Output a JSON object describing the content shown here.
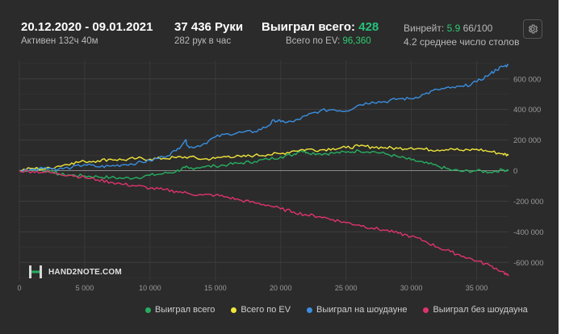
{
  "header": {
    "date_range": "20.12.2020 - 09.01.2021",
    "active_time": "Активен 132ч 40м",
    "hands": "37 436 Руки",
    "hands_per_hour": "282 рук в час",
    "won_total_label": "Выиграл всего:",
    "won_total_value": "428",
    "ev_total_label": "Всего по EV:",
    "ev_total_value": "96,360",
    "winrate_label": "Винрейт:",
    "winrate_value": "5.9",
    "winrate_extra": "66/100",
    "avg_tables": "4.2 среднее число столов",
    "settings_icon": "gear-icon"
  },
  "logo": {
    "text": "HAND2NOTE.COM",
    "icon": "h2n-logo-icon"
  },
  "colors": {
    "background": "#2b2b2b",
    "won_total": "#27ae60",
    "ev_total": "#f1e63a",
    "showdown": "#3a8fe0",
    "non_showdown": "#e0336b"
  },
  "chart_data": {
    "type": "line",
    "x_ticks": [
      "0",
      "5 000",
      "10 000",
      "15 000",
      "20 000",
      "25 000",
      "30 000",
      "35 000"
    ],
    "y_ticks": [
      "600 000",
      "400 000",
      "200 000",
      "0",
      "-200 000",
      "-400 000",
      "-600 000"
    ],
    "xlim": [
      0,
      37436
    ],
    "ylim": [
      -720000,
      720000
    ],
    "grid": true,
    "legend_position": "bottom",
    "series": [
      {
        "name": "Выиграл всего",
        "color": "#27ae60",
        "x": [
          0,
          1000,
          1500,
          2000,
          2500,
          3000,
          4000,
          5000,
          6000,
          7000,
          8000,
          9000,
          10000,
          11000,
          12000,
          12700,
          13000,
          14000,
          15000,
          16000,
          17000,
          18000,
          19000,
          20000,
          21000,
          21500,
          22000,
          23000,
          24000,
          25000,
          26000,
          27000,
          28000,
          29000,
          30000,
          31000,
          32000,
          33000,
          34000,
          35000,
          36000,
          37000,
          37436
        ],
        "y": [
          0,
          5000,
          15000,
          -5000,
          0,
          -25000,
          -30000,
          -35000,
          -40000,
          -45000,
          -50000,
          -45000,
          -30000,
          -20000,
          -5000,
          20000,
          15000,
          25000,
          30000,
          40000,
          50000,
          60000,
          75000,
          90000,
          105000,
          135000,
          120000,
          110000,
          115000,
          120000,
          130000,
          125000,
          110000,
          90000,
          70000,
          50000,
          30000,
          5000,
          -5000,
          0,
          -10000,
          5000,
          2000
        ]
      },
      {
        "name": "Всего по EV",
        "color": "#f1e63a",
        "x": [
          0,
          1000,
          2000,
          3000,
          4000,
          5000,
          6000,
          7000,
          8000,
          9000,
          10000,
          11000,
          12000,
          13000,
          14000,
          15000,
          16000,
          17000,
          18000,
          19000,
          20000,
          21000,
          22000,
          23000,
          24000,
          25000,
          26000,
          27000,
          28000,
          29000,
          30000,
          31000,
          32000,
          33000,
          34000,
          35000,
          36000,
          37000,
          37436
        ],
        "y": [
          0,
          15000,
          10000,
          30000,
          50000,
          60000,
          65000,
          75000,
          70000,
          80000,
          75000,
          80000,
          85000,
          90000,
          75000,
          80000,
          95000,
          90000,
          100000,
          105000,
          110000,
          130000,
          140000,
          135000,
          145000,
          150000,
          160000,
          155000,
          150000,
          145000,
          150000,
          140000,
          135000,
          145000,
          130000,
          140000,
          125000,
          110000,
          100000
        ]
      },
      {
        "name": "Выиграл на шоудауне",
        "color": "#3a8fe0",
        "x": [
          0,
          1000,
          2000,
          3000,
          4000,
          5000,
          6000,
          7000,
          8000,
          9000,
          10000,
          11000,
          12000,
          12700,
          13000,
          14000,
          15000,
          16000,
          17000,
          18000,
          19000,
          19500,
          20000,
          21000,
          22000,
          23000,
          24000,
          25000,
          26000,
          27000,
          28000,
          29000,
          30000,
          31000,
          32000,
          33000,
          34000,
          35000,
          36000,
          36500,
          37000,
          37436
        ],
        "y": [
          0,
          10000,
          20000,
          10000,
          20000,
          40000,
          25000,
          30000,
          40000,
          50000,
          65000,
          90000,
          130000,
          200000,
          150000,
          170000,
          220000,
          240000,
          250000,
          255000,
          290000,
          330000,
          320000,
          320000,
          360000,
          390000,
          400000,
          390000,
          430000,
          450000,
          450000,
          470000,
          470000,
          500000,
          530000,
          540000,
          550000,
          580000,
          630000,
          660000,
          680000,
          690000
        ]
      },
      {
        "name": "Выиграл без шоудауна",
        "color": "#e0336b",
        "x": [
          0,
          1000,
          2000,
          3000,
          4000,
          5000,
          6000,
          7000,
          8000,
          9000,
          10000,
          11000,
          12000,
          13000,
          14000,
          15000,
          16000,
          17000,
          18000,
          19000,
          20000,
          21000,
          22000,
          23000,
          24000,
          25000,
          26000,
          27000,
          28000,
          29000,
          30000,
          31000,
          32000,
          33000,
          34000,
          35000,
          36000,
          37000,
          37436
        ],
        "y": [
          0,
          -5000,
          -10000,
          -20000,
          -30000,
          -45000,
          -60000,
          -75000,
          -90000,
          -100000,
          -115000,
          -125000,
          -135000,
          -150000,
          -160000,
          -160000,
          -175000,
          -195000,
          -210000,
          -225000,
          -250000,
          -270000,
          -290000,
          -300000,
          -320000,
          -340000,
          -355000,
          -375000,
          -390000,
          -410000,
          -430000,
          -460000,
          -500000,
          -530000,
          -560000,
          -590000,
          -620000,
          -660000,
          -690000
        ]
      }
    ]
  }
}
